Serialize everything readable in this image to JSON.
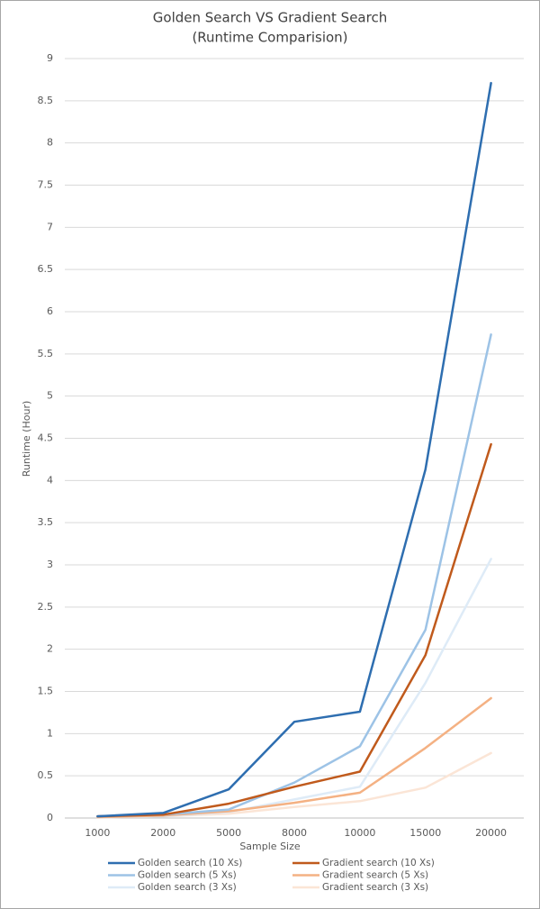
{
  "chart_data": {
    "type": "line",
    "title": "Golden Search VS Gradient Search",
    "subtitle": "(Runtime Comparision)",
    "x_label": "Sample Size",
    "y_label": "Runtime (Hour)",
    "categories": [
      "1000",
      "2000",
      "5000",
      "8000",
      "10000",
      "15000",
      "20000"
    ],
    "series": [
      {
        "name": "Golden search (10 Xs)",
        "color": "#2e6eb0",
        "values": [
          0.02,
          0.06,
          0.34,
          1.14,
          1.26,
          4.13,
          8.71
        ]
      },
      {
        "name": "Gradient search (10 Xs)",
        "color": "#c05a1c",
        "values": [
          0.02,
          0.04,
          0.17,
          0.37,
          0.55,
          1.93,
          4.43
        ]
      },
      {
        "name": "Golden search (5 Xs)",
        "color": "#9dc3e6",
        "values": [
          0.02,
          0.04,
          0.1,
          0.42,
          0.85,
          2.23,
          5.73
        ]
      },
      {
        "name": "Gradient search (5 Xs)",
        "color": "#f4b183",
        "values": [
          0.01,
          0.03,
          0.08,
          0.18,
          0.3,
          0.83,
          1.42
        ]
      },
      {
        "name": "Golden search (3 Xs)",
        "color": "#deebf7",
        "values": [
          0.01,
          0.02,
          0.07,
          0.22,
          0.37,
          1.6,
          3.07
        ]
      },
      {
        "name": "Gradient search (3 Xs)",
        "color": "#fbe5d6",
        "values": [
          0.01,
          0.02,
          0.05,
          0.13,
          0.2,
          0.36,
          0.77
        ]
      }
    ],
    "ylim": [
      0,
      9
    ],
    "yticks": [
      0,
      0.5,
      1,
      1.5,
      2,
      2.5,
      3,
      3.5,
      4,
      4.5,
      5,
      5.5,
      6,
      6.5,
      7,
      7.5,
      8,
      8.5,
      9
    ],
    "grid": true,
    "legend": "bottom"
  }
}
